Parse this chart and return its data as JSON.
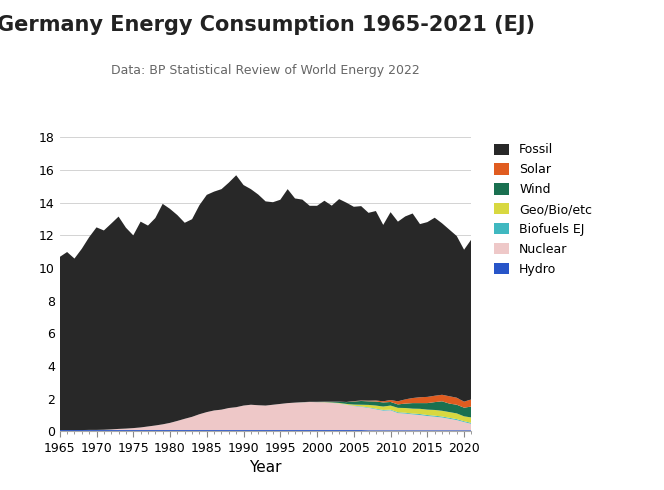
{
  "title": "Germany Energy Consumption 1965-2021 (EJ)",
  "subtitle": "Data: BP Statistical Review of World Energy 2022",
  "xlabel": "Year",
  "ylabel": "",
  "years": [
    1965,
    1966,
    1967,
    1968,
    1969,
    1970,
    1971,
    1972,
    1973,
    1974,
    1975,
    1976,
    1977,
    1978,
    1979,
    1980,
    1981,
    1982,
    1983,
    1984,
    1985,
    1986,
    1987,
    1988,
    1989,
    1990,
    1991,
    1992,
    1993,
    1994,
    1995,
    1996,
    1997,
    1998,
    1999,
    2000,
    2001,
    2002,
    2003,
    2004,
    2005,
    2006,
    2007,
    2008,
    2009,
    2010,
    2011,
    2012,
    2013,
    2014,
    2015,
    2016,
    2017,
    2018,
    2019,
    2020,
    2021
  ],
  "fossil": [
    10.6,
    10.9,
    10.5,
    11.1,
    11.8,
    12.4,
    12.2,
    12.6,
    13.0,
    12.3,
    11.8,
    12.6,
    12.3,
    12.7,
    13.5,
    13.1,
    12.6,
    12.0,
    12.1,
    12.8,
    13.3,
    13.4,
    13.5,
    13.8,
    14.2,
    13.5,
    13.2,
    12.9,
    12.5,
    12.4,
    12.5,
    13.1,
    12.5,
    12.4,
    12.0,
    12.0,
    12.3,
    12.0,
    12.4,
    12.2,
    11.9,
    11.9,
    11.5,
    11.6,
    10.8,
    11.5,
    11.0,
    11.2,
    11.3,
    10.6,
    10.7,
    10.9,
    10.5,
    10.2,
    9.9,
    9.3,
    9.8
  ],
  "solar": [
    0.0,
    0.0,
    0.0,
    0.0,
    0.0,
    0.0,
    0.0,
    0.0,
    0.0,
    0.0,
    0.0,
    0.0,
    0.0,
    0.0,
    0.0,
    0.0,
    0.0,
    0.0,
    0.0,
    0.0,
    0.0,
    0.0,
    0.0,
    0.0,
    0.0,
    0.0,
    0.0,
    0.0,
    0.0,
    0.0,
    0.0,
    0.0,
    0.0,
    0.0,
    0.0,
    0.0,
    0.0,
    0.0,
    0.0,
    0.01,
    0.02,
    0.03,
    0.04,
    0.06,
    0.07,
    0.12,
    0.19,
    0.26,
    0.31,
    0.36,
    0.38,
    0.39,
    0.4,
    0.45,
    0.43,
    0.37,
    0.44
  ],
  "wind": [
    0.0,
    0.0,
    0.0,
    0.0,
    0.0,
    0.0,
    0.0,
    0.0,
    0.0,
    0.0,
    0.0,
    0.0,
    0.0,
    0.0,
    0.0,
    0.0,
    0.0,
    0.0,
    0.0,
    0.0,
    0.0,
    0.0,
    0.0,
    0.0,
    0.0,
    0.0,
    0.0,
    0.0,
    0.0,
    0.0,
    0.0,
    0.0,
    0.0,
    0.01,
    0.01,
    0.02,
    0.03,
    0.05,
    0.08,
    0.11,
    0.19,
    0.23,
    0.22,
    0.25,
    0.25,
    0.22,
    0.21,
    0.27,
    0.34,
    0.35,
    0.4,
    0.48,
    0.58,
    0.52,
    0.53,
    0.53,
    0.67
  ],
  "geo_bio": [
    0.0,
    0.0,
    0.0,
    0.0,
    0.0,
    0.0,
    0.0,
    0.0,
    0.0,
    0.0,
    0.0,
    0.0,
    0.0,
    0.0,
    0.0,
    0.0,
    0.0,
    0.0,
    0.0,
    0.0,
    0.0,
    0.0,
    0.0,
    0.0,
    0.0,
    0.0,
    0.0,
    0.0,
    0.0,
    0.0,
    0.0,
    0.0,
    0.0,
    0.0,
    0.0,
    0.0,
    0.01,
    0.02,
    0.03,
    0.04,
    0.07,
    0.1,
    0.15,
    0.19,
    0.21,
    0.25,
    0.27,
    0.29,
    0.3,
    0.32,
    0.33,
    0.35,
    0.35,
    0.35,
    0.35,
    0.3,
    0.33
  ],
  "biofuels": [
    0.0,
    0.0,
    0.0,
    0.0,
    0.0,
    0.0,
    0.0,
    0.0,
    0.0,
    0.0,
    0.0,
    0.0,
    0.0,
    0.0,
    0.0,
    0.0,
    0.0,
    0.0,
    0.0,
    0.0,
    0.0,
    0.0,
    0.0,
    0.0,
    0.0,
    0.0,
    0.0,
    0.0,
    0.0,
    0.0,
    0.0,
    0.0,
    0.0,
    0.0,
    0.0,
    0.0,
    0.0,
    0.0,
    0.01,
    0.01,
    0.02,
    0.03,
    0.03,
    0.04,
    0.04,
    0.04,
    0.05,
    0.05,
    0.05,
    0.06,
    0.06,
    0.06,
    0.06,
    0.06,
    0.06,
    0.05,
    0.06
  ],
  "nuclear": [
    0.0,
    0.0,
    0.0,
    0.0,
    0.01,
    0.01,
    0.02,
    0.04,
    0.07,
    0.09,
    0.12,
    0.16,
    0.22,
    0.28,
    0.35,
    0.44,
    0.56,
    0.69,
    0.81,
    0.97,
    1.1,
    1.2,
    1.25,
    1.35,
    1.4,
    1.5,
    1.55,
    1.52,
    1.5,
    1.55,
    1.6,
    1.65,
    1.68,
    1.7,
    1.72,
    1.71,
    1.7,
    1.67,
    1.62,
    1.55,
    1.47,
    1.42,
    1.37,
    1.28,
    1.2,
    1.22,
    1.05,
    1.02,
    0.97,
    0.93,
    0.87,
    0.83,
    0.78,
    0.7,
    0.62,
    0.5,
    0.39
  ],
  "hydro": [
    0.07,
    0.07,
    0.07,
    0.07,
    0.07,
    0.07,
    0.07,
    0.07,
    0.07,
    0.07,
    0.07,
    0.07,
    0.07,
    0.07,
    0.07,
    0.07,
    0.07,
    0.07,
    0.07,
    0.07,
    0.07,
    0.07,
    0.07,
    0.07,
    0.07,
    0.07,
    0.07,
    0.07,
    0.07,
    0.07,
    0.07,
    0.07,
    0.07,
    0.07,
    0.07,
    0.07,
    0.07,
    0.07,
    0.07,
    0.07,
    0.07,
    0.07,
    0.06,
    0.06,
    0.06,
    0.06,
    0.06,
    0.06,
    0.06,
    0.06,
    0.06,
    0.06,
    0.06,
    0.06,
    0.06,
    0.06,
    0.06
  ],
  "colors": {
    "fossil": "#282828",
    "solar": "#e05c20",
    "wind": "#1a7050",
    "geo_bio": "#d8d840",
    "biofuels": "#40b8c0",
    "nuclear": "#eec8c8",
    "hydro": "#2855c8"
  },
  "ylim": [
    0,
    18
  ],
  "yticks": [
    0,
    2,
    4,
    6,
    8,
    10,
    12,
    14,
    16,
    18
  ],
  "xlim": [
    1965,
    2021
  ],
  "xticks": [
    1965,
    1970,
    1975,
    1980,
    1985,
    1990,
    1995,
    2000,
    2005,
    2010,
    2015,
    2020
  ],
  "bg_color": "#ffffff",
  "grid_color": "#cccccc",
  "title_fontsize": 15,
  "subtitle_fontsize": 9,
  "tick_fontsize": 9,
  "xlabel_fontsize": 11
}
